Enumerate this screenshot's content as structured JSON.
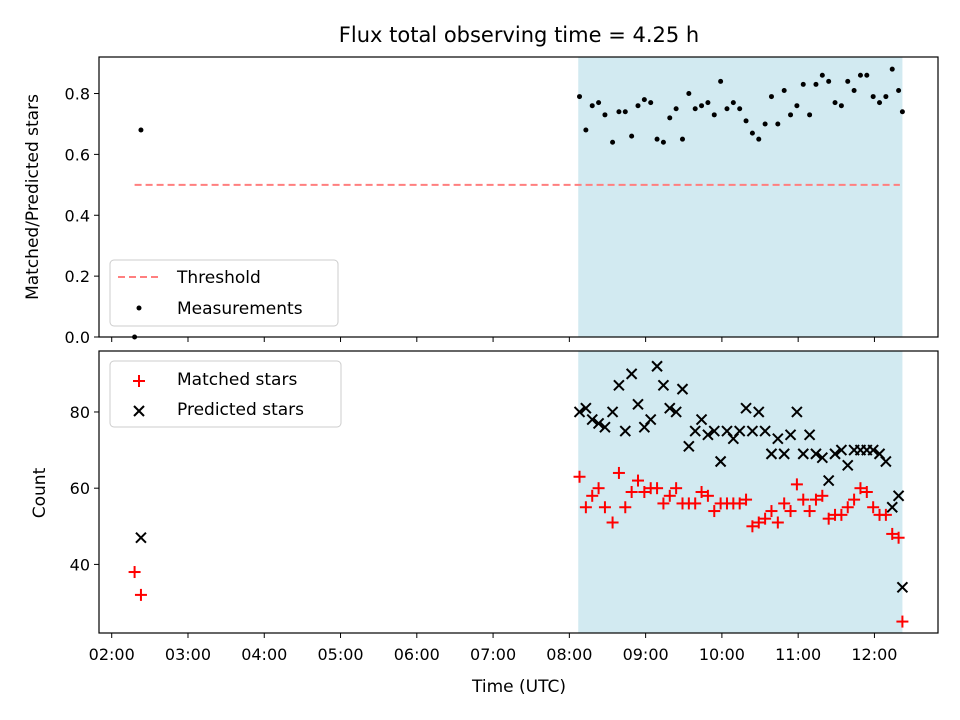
{
  "title": "Flux total observing time = 4.25 h",
  "chart_data": [
    {
      "type": "scatter",
      "ylabel": "Matched/Predicted stars",
      "xlim": [
        "01:50",
        "12:50"
      ],
      "ylim": [
        0,
        0.92
      ],
      "yticks": [
        "0.0",
        "0.2",
        "0.4",
        "0.6",
        "0.8"
      ],
      "shaded_span": {
        "start": "08:07",
        "end": "12:22",
        "color": "#add8e6"
      },
      "legend_position": "lower-left",
      "series": [
        {
          "name": "Threshold",
          "style": "dashed-line",
          "color": "#ff7f7f",
          "x": [
            "02:18",
            "12:20"
          ],
          "y": [
            0.5,
            0.5
          ]
        },
        {
          "name": "Measurements",
          "style": "dot",
          "color": "#000000",
          "x": [
            "02:18",
            "02:23",
            "08:08",
            "08:13",
            "08:18",
            "08:23",
            "08:28",
            "08:34",
            "08:39",
            "08:44",
            "08:49",
            "08:54",
            "08:59",
            "09:04",
            "09:09",
            "09:14",
            "09:19",
            "09:24",
            "09:29",
            "09:34",
            "09:39",
            "09:44",
            "09:49",
            "09:54",
            "09:59",
            "10:04",
            "10:09",
            "10:14",
            "10:19",
            "10:24",
            "10:29",
            "10:34",
            "10:39",
            "10:44",
            "10:49",
            "10:54",
            "10:59",
            "11:04",
            "11:09",
            "11:14",
            "11:19",
            "11:24",
            "11:29",
            "11:34",
            "11:39",
            "11:44",
            "11:49",
            "11:54",
            "11:59",
            "12:04",
            "12:09",
            "12:14",
            "12:19",
            "12:22"
          ],
          "y": [
            0.0,
            0.68,
            0.79,
            0.68,
            0.76,
            0.77,
            0.73,
            0.64,
            0.74,
            0.74,
            0.66,
            0.76,
            0.78,
            0.77,
            0.65,
            0.64,
            0.72,
            0.75,
            0.65,
            0.8,
            0.75,
            0.76,
            0.77,
            0.73,
            0.84,
            0.75,
            0.77,
            0.75,
            0.71,
            0.67,
            0.65,
            0.7,
            0.79,
            0.7,
            0.81,
            0.73,
            0.76,
            0.83,
            0.73,
            0.83,
            0.86,
            0.84,
            0.77,
            0.76,
            0.84,
            0.81,
            0.86,
            0.86,
            0.79,
            0.77,
            0.79,
            0.88,
            0.81,
            0.74
          ]
        }
      ]
    },
    {
      "type": "scatter",
      "ylabel": "Count",
      "xlabel": "Time (UTC)",
      "xlim": [
        "01:50",
        "12:50"
      ],
      "ylim": [
        22,
        96
      ],
      "yticks": [
        "40",
        "60",
        "80"
      ],
      "xticks": [
        "02:00",
        "03:00",
        "04:00",
        "05:00",
        "06:00",
        "07:00",
        "08:00",
        "09:00",
        "10:00",
        "11:00",
        "12:00"
      ],
      "shaded_span": {
        "start": "08:07",
        "end": "12:22",
        "color": "#add8e6"
      },
      "legend_position": "upper-left",
      "series": [
        {
          "name": "Matched stars",
          "marker": "plus",
          "color": "#ff0000",
          "x": [
            "02:18",
            "02:23",
            "08:08",
            "08:13",
            "08:18",
            "08:23",
            "08:28",
            "08:34",
            "08:39",
            "08:44",
            "08:49",
            "08:54",
            "08:59",
            "09:04",
            "09:09",
            "09:14",
            "09:19",
            "09:24",
            "09:29",
            "09:34",
            "09:39",
            "09:44",
            "09:49",
            "09:54",
            "09:59",
            "10:04",
            "10:09",
            "10:14",
            "10:19",
            "10:24",
            "10:29",
            "10:34",
            "10:39",
            "10:44",
            "10:49",
            "10:54",
            "10:59",
            "11:04",
            "11:09",
            "11:14",
            "11:19",
            "11:24",
            "11:29",
            "11:34",
            "11:39",
            "11:44",
            "11:49",
            "11:54",
            "11:59",
            "12:04",
            "12:09",
            "12:14",
            "12:19",
            "12:22"
          ],
          "y": [
            38,
            32,
            63,
            55,
            58,
            60,
            55,
            51,
            64,
            55,
            59,
            62,
            59,
            60,
            60,
            56,
            58,
            60,
            56,
            56,
            56,
            59,
            58,
            54,
            56,
            56,
            56,
            56,
            57,
            50,
            51,
            52,
            54,
            51,
            56,
            54,
            61,
            57,
            54,
            57,
            58,
            52,
            53,
            53,
            55,
            57,
            60,
            59,
            55,
            53,
            53,
            48,
            47,
            25
          ]
        },
        {
          "name": "Predicted stars",
          "marker": "x",
          "color": "#000000",
          "x": [
            "02:23",
            "08:08",
            "08:13",
            "08:18",
            "08:23",
            "08:28",
            "08:34",
            "08:39",
            "08:44",
            "08:49",
            "08:54",
            "08:59",
            "09:04",
            "09:09",
            "09:14",
            "09:19",
            "09:24",
            "09:29",
            "09:34",
            "09:39",
            "09:44",
            "09:49",
            "09:54",
            "09:59",
            "10:04",
            "10:09",
            "10:14",
            "10:19",
            "10:24",
            "10:29",
            "10:34",
            "10:39",
            "10:44",
            "10:49",
            "10:54",
            "10:59",
            "11:04",
            "11:09",
            "11:14",
            "11:19",
            "11:24",
            "11:29",
            "11:34",
            "11:39",
            "11:44",
            "11:49",
            "11:54",
            "11:59",
            "12:04",
            "12:09",
            "12:14",
            "12:19",
            "12:22"
          ],
          "y": [
            47,
            80,
            81,
            78,
            77,
            76,
            80,
            87,
            75,
            90,
            82,
            76,
            78,
            92,
            87,
            81,
            80,
            86,
            71,
            75,
            78,
            74,
            75,
            67,
            75,
            73,
            75,
            81,
            75,
            80,
            75,
            69,
            73,
            69,
            74,
            80,
            69,
            74,
            69,
            68,
            62,
            69,
            70,
            66,
            70,
            70,
            70,
            70,
            69,
            67,
            55,
            58,
            34
          ]
        }
      ]
    }
  ]
}
